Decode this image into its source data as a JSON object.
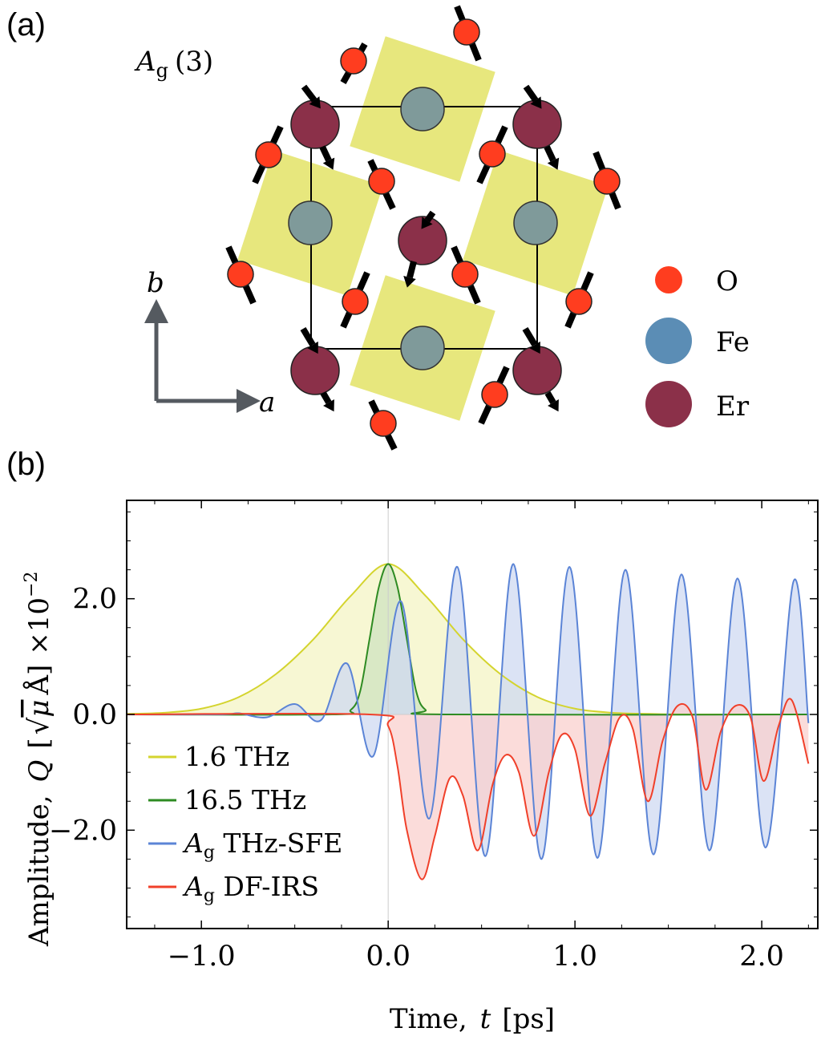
{
  "panel_a": {
    "label": "(a)",
    "mode_label": "A",
    "mode_sub": "g",
    "mode_index": "(3)",
    "axis_b": "b",
    "axis_a": "a",
    "legend": [
      {
        "name": "O",
        "color": "#ff3d1f"
      },
      {
        "name": "Fe",
        "color": "#5b8db5"
      },
      {
        "name": "Er",
        "color": "#8b3049"
      }
    ],
    "colors": {
      "octahedron": "#e7e77d",
      "fe_in_octahedron": "#7f9a9a",
      "er": "#8b3049",
      "o": "#ff3d1f",
      "arrow": "#000000",
      "axis_arrow": "#555a60"
    }
  },
  "panel_b": {
    "label": "(b)",
    "chart_data": {
      "type": "line",
      "xlabel_text": "Time,",
      "xlabel_symbol": "t",
      "xlabel_unit": "[ps]",
      "ylabel_text": "Amplitude,",
      "ylabel_symbol": "Q",
      "ylabel_unit_pre": "[",
      "ylabel_unit_root": "μ",
      "ylabel_unit_post": "Å]",
      "ylabel_scale": "×10",
      "ylabel_exp": "−2",
      "xlim": [
        -1.4,
        2.3
      ],
      "ylim": [
        -3.7,
        3.7
      ],
      "xticks": [
        -1.0,
        0.0,
        1.0,
        2.0
      ],
      "xtick_labels": [
        "−1.0",
        "0.0",
        "1.0",
        "2.0"
      ],
      "yticks": [
        -2.0,
        0.0,
        2.0
      ],
      "ytick_labels": [
        "−2.0",
        "0.0",
        "2.0"
      ],
      "grid": "lines at x=0 and y=0",
      "legend_position": "lower-left",
      "series": [
        {
          "name": "1.6 THz",
          "label_main": "1.6 THz",
          "label_sub": "",
          "color": "#d4d42e",
          "fill": "#f4f4c4",
          "x": [
            -1.4,
            -1.2,
            -1.0,
            -0.8,
            -0.6,
            -0.4,
            -0.2,
            0.0,
            0.2,
            0.4,
            0.6,
            0.8,
            1.0,
            1.2,
            1.4,
            1.6,
            2.25
          ],
          "y": [
            0.01,
            0.03,
            0.1,
            0.3,
            0.7,
            1.3,
            2.05,
            2.6,
            2.05,
            1.3,
            0.7,
            0.3,
            0.1,
            0.03,
            0.01,
            0.0,
            0.0
          ]
        },
        {
          "name": "16.5 THz",
          "label_main": "16.5 THz",
          "label_sub": "",
          "color": "#2e8b22",
          "fill": "#cfe3c0",
          "x": [
            -1.4,
            -0.3,
            -0.2,
            -0.15,
            -0.1,
            -0.05,
            0.0,
            0.05,
            0.1,
            0.15,
            0.2,
            0.3,
            2.25
          ],
          "y": [
            0.0,
            0.0,
            0.08,
            0.4,
            1.3,
            2.2,
            2.6,
            2.2,
            1.3,
            0.4,
            0.08,
            0.0,
            0.0
          ]
        },
        {
          "name": "A_g THz-SFE",
          "label_main": "A",
          "label_sub": "g",
          "label_rest": " THz-SFE",
          "color": "#5b84d6",
          "fill": "#cfdaf2",
          "x": [
            -1.4,
            -0.9,
            -0.8,
            -0.65,
            -0.5,
            -0.36,
            -0.22,
            -0.08,
            0.07,
            0.22,
            0.37,
            0.52,
            0.67,
            0.82,
            0.97,
            1.12,
            1.27,
            1.42,
            1.57,
            1.72,
            1.87,
            2.02,
            2.17,
            2.25
          ],
          "y": [
            0.0,
            0.0,
            0.02,
            -0.05,
            0.18,
            -0.1,
            0.88,
            -0.72,
            1.95,
            -1.8,
            2.55,
            -2.45,
            2.6,
            -2.5,
            2.55,
            -2.48,
            2.5,
            -2.42,
            2.42,
            -2.35,
            2.35,
            -2.3,
            2.3,
            -0.15
          ]
        },
        {
          "name": "A_g DF-IRS",
          "label_main": "A",
          "label_sub": "g",
          "label_rest": " DF-IRS",
          "color": "#f0402a",
          "fill": "#f9d0cd",
          "x": [
            -1.4,
            -0.1,
            0.0,
            0.05,
            0.1,
            0.18,
            0.25,
            0.33,
            0.4,
            0.48,
            0.56,
            0.63,
            0.7,
            0.78,
            0.86,
            0.93,
            1.0,
            1.08,
            1.16,
            1.24,
            1.31,
            1.39,
            1.47,
            1.55,
            1.63,
            1.7,
            1.78,
            1.86,
            1.94,
            2.01,
            2.09,
            2.16,
            2.25
          ],
          "y": [
            0.0,
            0.0,
            -0.2,
            -0.9,
            -2.0,
            -2.85,
            -2.1,
            -1.1,
            -1.4,
            -2.35,
            -1.2,
            -0.7,
            -1.0,
            -2.1,
            -1.0,
            -0.35,
            -0.6,
            -1.75,
            -0.85,
            -0.05,
            -0.25,
            -1.5,
            -0.45,
            0.15,
            -0.05,
            -1.3,
            -0.3,
            0.15,
            -0.05,
            -1.15,
            -0.2,
            0.25,
            -0.85
          ]
        }
      ]
    }
  }
}
